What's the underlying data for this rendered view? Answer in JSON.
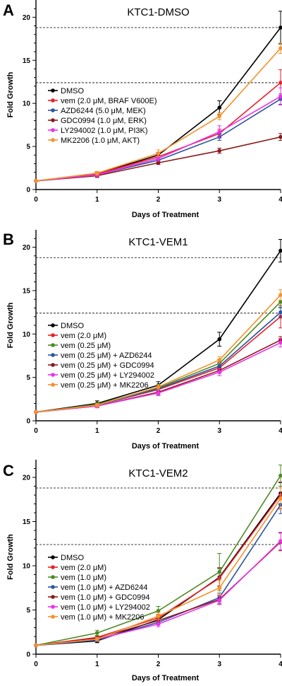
{
  "chart_data": [
    {
      "type": "line",
      "panel": "A",
      "title": "KTC1-DMSO",
      "xlabel": "Days of Treatment",
      "ylabel": "Fold Growth",
      "x": [
        0,
        1,
        2,
        3,
        4
      ],
      "xlim": [
        0,
        4
      ],
      "ylim": [
        0,
        22
      ],
      "xticks": [
        "0",
        "1",
        "2",
        "3",
        "4"
      ],
      "yticks": [
        "0",
        "5",
        "10",
        "15",
        "20"
      ],
      "legend_position": "left",
      "reference_lines": [
        18.8,
        12.4
      ],
      "series": [
        {
          "name": "DMSO",
          "color": "#000000",
          "values": [
            1,
            1.8,
            4.0,
            9.5,
            18.8
          ],
          "errors": [
            0,
            0.2,
            0.3,
            0.8,
            1.9
          ]
        },
        {
          "name": "vem (2.0 μM, BRAF V600E)",
          "color": "#e8222a",
          "values": [
            1,
            1.8,
            3.8,
            6.5,
            12.4
          ],
          "errors": [
            0,
            0.2,
            0.3,
            0.5,
            1.5
          ]
        },
        {
          "name": "AZD6244 (5.0 μM, MEK)",
          "color": "#2b54a4",
          "values": [
            1,
            1.7,
            3.4,
            6.1,
            10.5
          ],
          "errors": [
            0,
            0.2,
            0.3,
            0.4,
            0.6
          ]
        },
        {
          "name": "GDC0994 (1.0 μM, ERK)",
          "color": "#8b1a1a",
          "values": [
            1,
            1.6,
            3.1,
            4.5,
            6.1
          ],
          "errors": [
            0,
            0.2,
            0.2,
            0.3,
            0.4
          ]
        },
        {
          "name": "LY294002 (1.0 μM, PI3K)",
          "color": "#e932e9",
          "values": [
            1,
            1.7,
            3.6,
            6.7,
            10.8
          ],
          "errors": [
            0,
            0.2,
            0.3,
            0.7,
            1.0
          ]
        },
        {
          "name": "MK2206 (1.0 μM, AKT)",
          "color": "#f4922c",
          "values": [
            1,
            1.9,
            4.2,
            8.5,
            16.4
          ],
          "errors": [
            0,
            0.2,
            0.4,
            0.4,
            0.6
          ]
        }
      ]
    },
    {
      "type": "line",
      "panel": "B",
      "title": "KTC1-VEM1",
      "xlabel": "Days of Treatment",
      "ylabel": "Fold Growth",
      "x": [
        0,
        1,
        2,
        3,
        4
      ],
      "xlim": [
        0,
        4
      ],
      "ylim": [
        0,
        22
      ],
      "xticks": [
        "0",
        "1",
        "2",
        "3",
        "4"
      ],
      "yticks": [
        "0",
        "5",
        "10",
        "15",
        "20"
      ],
      "legend_position": "left",
      "reference_lines": [
        18.8,
        12.4
      ],
      "series": [
        {
          "name": "DMSO",
          "color": "#000000",
          "values": [
            1,
            2.0,
            4.1,
            9.4,
            19.6
          ],
          "errors": [
            0,
            0.3,
            0.4,
            0.8,
            1.3
          ]
        },
        {
          "name": "vem (2.0 μM)",
          "color": "#e8222a",
          "values": [
            1,
            1.8,
            3.6,
            6.1,
            12.0
          ],
          "errors": [
            0,
            0.2,
            0.3,
            0.5,
            1.3
          ]
        },
        {
          "name": "vem (0.25 μM)",
          "color": "#4e8a24",
          "values": [
            1,
            1.9,
            3.8,
            6.6,
            13.7
          ],
          "errors": [
            0,
            0.2,
            0.3,
            0.5,
            0.7
          ]
        },
        {
          "name": "vem (0.25 μM) + AZD6244",
          "color": "#2b54a4",
          "values": [
            1,
            1.8,
            3.7,
            6.3,
            12.5
          ],
          "errors": [
            0,
            0.2,
            0.3,
            0.4,
            0.6
          ]
        },
        {
          "name": "vem (0.25 μM) + GDC0994",
          "color": "#8b1a1a",
          "values": [
            1,
            1.7,
            3.3,
            5.8,
            9.3
          ],
          "errors": [
            0,
            0.2,
            0.3,
            0.3,
            0.4
          ]
        },
        {
          "name": "vem (0.25 μM) + LY294002",
          "color": "#e932e9",
          "values": [
            1,
            1.7,
            3.2,
            5.6,
            9.0
          ],
          "errors": [
            0,
            0.2,
            0.3,
            0.4,
            0.5
          ]
        },
        {
          "name": "vem (0.25 μM) + MK2206",
          "color": "#f4922c",
          "values": [
            1,
            1.8,
            3.9,
            7.0,
            14.5
          ],
          "errors": [
            0,
            0.2,
            0.3,
            0.4,
            0.6
          ]
        }
      ]
    },
    {
      "type": "line",
      "panel": "C",
      "title": "KTC1-VEM2",
      "xlabel": "Days of Treatment",
      "ylabel": "Fold Growth",
      "x": [
        0,
        1,
        2,
        3,
        4
      ],
      "xlim": [
        0,
        4
      ],
      "ylim": [
        0,
        22
      ],
      "xticks": [
        "0",
        "1",
        "2",
        "3",
        "4"
      ],
      "yticks": [
        "0",
        "5",
        "10",
        "15",
        "20"
      ],
      "legend_position": "left",
      "reference_lines": [
        18.8,
        12.4
      ],
      "series": [
        {
          "name": "DMSO",
          "color": "#000000",
          "values": [
            1,
            1.5,
            3.9,
            8.7,
            18.2
          ],
          "errors": [
            0,
            0.2,
            0.4,
            1.0,
            1.2
          ]
        },
        {
          "name": "vem (2.0 μM)",
          "color": "#e8222a",
          "values": [
            1,
            1.9,
            4.1,
            8.6,
            18.0
          ],
          "errors": [
            0,
            0.2,
            0.4,
            1.2,
            1.5
          ]
        },
        {
          "name": "vem (1.0 μM)",
          "color": "#4e8a24",
          "values": [
            1,
            2.4,
            4.9,
            9.3,
            20.2
          ],
          "errors": [
            0,
            0.3,
            0.5,
            2.1,
            1.2
          ]
        },
        {
          "name": "vem (1.0 μM) + AZD6244",
          "color": "#2b54a4",
          "values": [
            1,
            1.6,
            3.6,
            6.4,
            16.9
          ],
          "errors": [
            0,
            0.2,
            0.3,
            0.5,
            1.0
          ]
        },
        {
          "name": "vem (1.0 μM) + GDC0994",
          "color": "#8b1a1a",
          "values": [
            1,
            1.8,
            3.8,
            6.2,
            12.7
          ],
          "errors": [
            0,
            0.2,
            0.3,
            0.5,
            1.0
          ]
        },
        {
          "name": "vem (1.0 μM) + LY294002",
          "color": "#e932e9",
          "values": [
            1,
            1.7,
            3.4,
            6.1,
            12.8
          ],
          "errors": [
            0,
            0.2,
            0.3,
            0.5,
            1.0
          ]
        },
        {
          "name": "vem (1.0 μM) + MK2206",
          "color": "#f4922c",
          "values": [
            1,
            1.7,
            4.3,
            7.5,
            17.6
          ],
          "errors": [
            0,
            0.2,
            0.4,
            0.8,
            1.2
          ]
        }
      ]
    }
  ]
}
